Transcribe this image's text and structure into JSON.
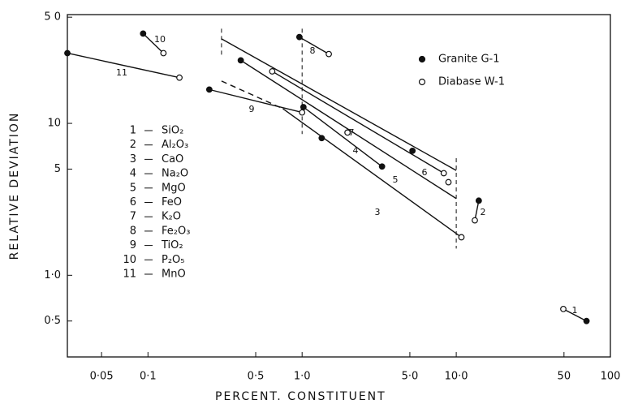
{
  "chart_data": {
    "type": "scatter",
    "xlabel": "PERCENT.  CONSTITUENT",
    "ylabel": "RELATIVE  DEVIATION",
    "xlog": true,
    "ylog": true,
    "xlim": [
      0.03,
      100
    ],
    "ylim": [
      0.29,
      52
    ],
    "xticks": [
      {
        "value": 0.05,
        "label": "0·05"
      },
      {
        "value": 0.1,
        "label": "0·1"
      },
      {
        "value": 0.5,
        "label": "0·5"
      },
      {
        "value": 1,
        "label": "1·0"
      },
      {
        "value": 5,
        "label": "5·0"
      },
      {
        "value": 10,
        "label": "10·0"
      },
      50,
      100
    ],
    "yticks": [
      {
        "value": 0.5,
        "label": "0·5"
      },
      {
        "value": 1,
        "label": "1·0"
      },
      5,
      10,
      {
        "value": 50,
        "label": "5 0"
      }
    ],
    "legend_position": "upper right",
    "series": [
      {
        "name": "Granite  G-1",
        "color": "#111",
        "marker": "filled",
        "x": [
          70,
          14,
          3.3,
          1.02,
          1.34,
          5.2,
          0.4,
          0.96,
          0.25,
          0.093,
          0.03
        ],
        "y": [
          0.5,
          3.1,
          5.2,
          12.8,
          8.0,
          6.6,
          26,
          37,
          16.7,
          39,
          29
        ]
      },
      {
        "name": "Diabase  W-1",
        "color": "#111",
        "marker": "open",
        "x": [
          49.5,
          13.2,
          10.8,
          1.97,
          8.9,
          8.3,
          0.64,
          1.49,
          1.0,
          0.126,
          0.16
        ],
        "y": [
          0.6,
          2.3,
          1.78,
          8.7,
          4.1,
          4.7,
          22,
          28.6,
          11.8,
          29,
          20
        ]
      }
    ],
    "lines": [
      {
        "label": "1",
        "x": [
          70,
          49.5
        ],
        "y": [
          0.5,
          0.6
        ],
        "dashed": false
      },
      {
        "label": "2",
        "x": [
          14,
          13.2
        ],
        "y": [
          3.1,
          2.3
        ],
        "dashed": false
      },
      {
        "label": "4",
        "x": [
          1.02,
          3.3
        ],
        "y": [
          12.8,
          5.2
        ],
        "dashed": false
      },
      {
        "label": "8",
        "x": [
          0.96,
          1.49
        ],
        "y": [
          37,
          28.6
        ],
        "dashed": false
      },
      {
        "label": "9",
        "x": [
          0.25,
          1.0
        ],
        "y": [
          16.7,
          11.8
        ],
        "dashed": false
      },
      {
        "label": "10",
        "x": [
          0.093,
          0.126
        ],
        "y": [
          39,
          29
        ],
        "dashed": false
      },
      {
        "label": "11",
        "x": [
          0.03,
          0.16
        ],
        "y": [
          29,
          20
        ],
        "dashed": false
      },
      {
        "label": "7",
        "x": [
          0.3,
          10
        ],
        "y": [
          36,
          4.9
        ],
        "dashed": false
      },
      {
        "label": "5",
        "x": [
          0.4,
          10
        ],
        "y": [
          26,
          3.2
        ],
        "dashed": false
      },
      {
        "label": "6",
        "x": [
          0.64,
          8.3
        ],
        "y": [
          22,
          4.7
        ],
        "dashed": false
      },
      {
        "label": "3",
        "x": [
          0.75,
          10.8
        ],
        "y": [
          12.5,
          1.78
        ],
        "dashed": false
      },
      {
        "x": [
          0.3,
          0.75
        ],
        "y": [
          19,
          12.5
        ],
        "dashed": true
      }
    ],
    "vlines": [
      {
        "x": 0.3,
        "y": [
          42,
          27
        ]
      },
      {
        "x": 1.0,
        "y": [
          42,
          8.5
        ]
      },
      {
        "x": 10,
        "y": [
          5.9,
          1.5
        ]
      }
    ],
    "key": [
      {
        "number": "1",
        "name": "SiO₂"
      },
      {
        "number": "2",
        "name": "Al₂O₃"
      },
      {
        "number": "3",
        "name": "CaO"
      },
      {
        "number": "4",
        "name": "Na₂O"
      },
      {
        "number": "5",
        "name": "MgO"
      },
      {
        "number": "6",
        "name": "FeO"
      },
      {
        "number": "7",
        "name": "K₂O"
      },
      {
        "number": "8",
        "name": "Fe₂O₃"
      },
      {
        "number": "9",
        "name": "TiO₂"
      },
      {
        "number": "10",
        "name": "P₂O₅"
      },
      {
        "number": "11",
        "name": "MnO"
      }
    ]
  }
}
